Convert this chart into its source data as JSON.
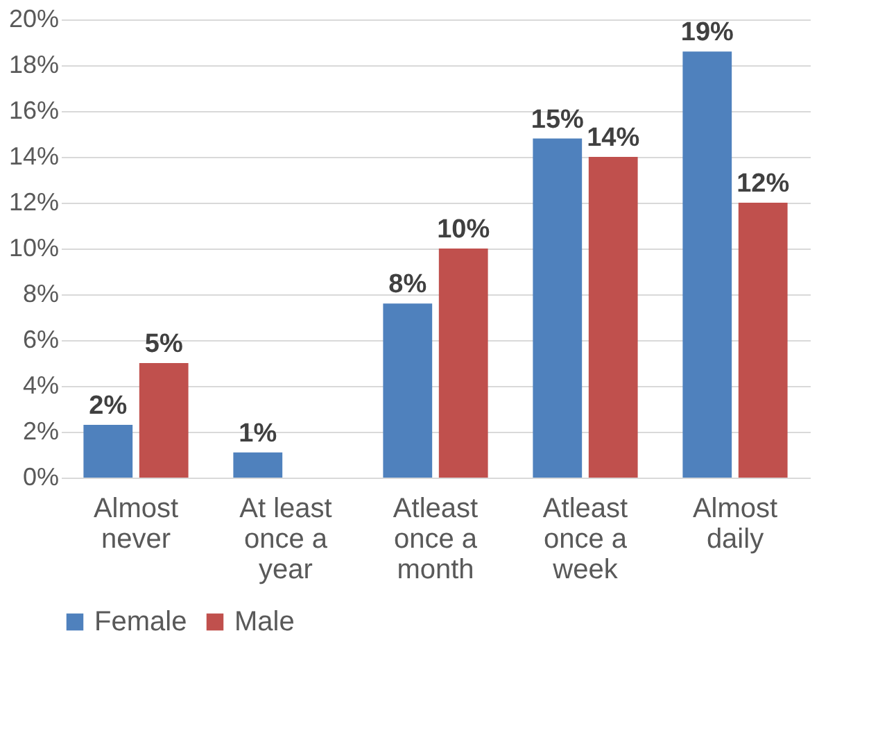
{
  "chart_data": {
    "type": "bar",
    "categories": [
      "Almost never",
      "At least once a year",
      "Atleast once a month",
      "Atleast once a week",
      "Almost daily"
    ],
    "series": [
      {
        "name": "Female",
        "color": "#4f81bd",
        "values": [
          2.3,
          1.1,
          7.6,
          14.8,
          18.6
        ],
        "value_labels": [
          "2%",
          "1%",
          "8%",
          "15%",
          "19%"
        ]
      },
      {
        "name": "Male",
        "color": "#c0504d",
        "values": [
          5,
          null,
          10,
          14,
          12
        ],
        "value_labels": [
          "5%",
          null,
          "10%",
          "14%",
          "12%"
        ]
      }
    ],
    "ylim": [
      0,
      20
    ],
    "yticks": [
      {
        "value": 0,
        "label": "0%"
      },
      {
        "value": 2,
        "label": "2%"
      },
      {
        "value": 4,
        "label": "4%"
      },
      {
        "value": 6,
        "label": "6%"
      },
      {
        "value": 8,
        "label": "8%"
      },
      {
        "value": 10,
        "label": "10%"
      },
      {
        "value": 12,
        "label": "12%"
      },
      {
        "value": 14,
        "label": "14%"
      },
      {
        "value": 16,
        "label": "16%"
      },
      {
        "value": 18,
        "label": "18%"
      },
      {
        "value": 20,
        "label": "20%"
      }
    ],
    "grid": "y",
    "legend": "bottom"
  }
}
